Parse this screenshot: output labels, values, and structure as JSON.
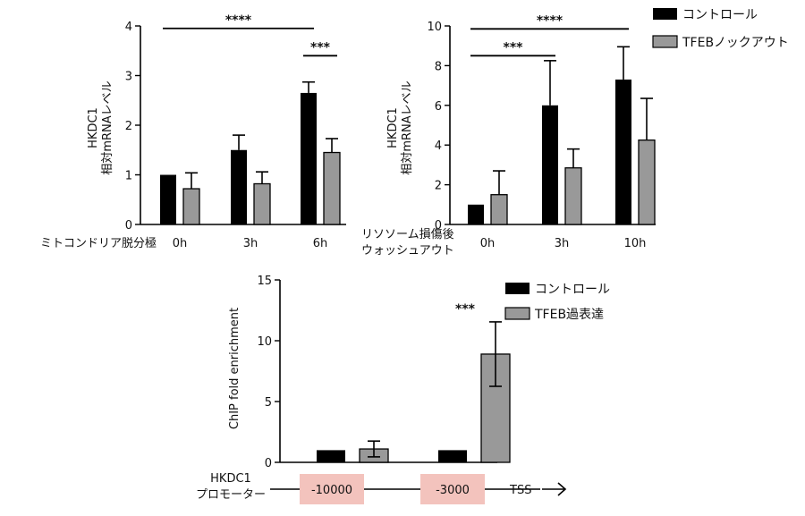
{
  "colors": {
    "control": "#000000",
    "treated": "#999999",
    "region_box": "#f3c3bd",
    "axis": "#000000"
  },
  "chart_data": [
    {
      "id": "chartA",
      "type": "bar",
      "ylabel_line1": "HKDC1",
      "ylabel_line2": "相対mRNAレベル",
      "xlabel": "ミトコンドリア脱分極",
      "categories": [
        "0h",
        "3h",
        "6h"
      ],
      "ylim": [
        0,
        4
      ],
      "yticks": [
        0,
        1,
        2,
        3,
        4
      ],
      "series": [
        {
          "name": "コントロール",
          "color": "#000000",
          "values": [
            1.0,
            1.5,
            2.65
          ],
          "errors": [
            0,
            0.3,
            0.22
          ]
        },
        {
          "name": "TFEBノックアウト",
          "color": "#999999",
          "values": [
            0.72,
            0.82,
            1.45
          ],
          "errors": [
            0.32,
            0.24,
            0.28
          ]
        }
      ],
      "significance": [
        {
          "label": "****",
          "from": [
            0,
            0
          ],
          "to": [
            2,
            0
          ],
          "y": 3.95
        },
        {
          "label": "***",
          "from": [
            2,
            0
          ],
          "to": [
            2,
            1
          ],
          "y": 3.4
        }
      ]
    },
    {
      "id": "chartB",
      "type": "bar",
      "ylabel_line1": "HKDC1",
      "ylabel_line2": "相対mRNAレベル",
      "xlabel_line1": "リソソーム損傷後",
      "xlabel_line2": "ウォッシュアウト",
      "categories": [
        "0h",
        "3h",
        "10h"
      ],
      "ylim": [
        0,
        10
      ],
      "yticks": [
        0,
        2,
        4,
        6,
        8,
        10
      ],
      "series": [
        {
          "name": "コントロール",
          "color": "#000000",
          "values": [
            1.0,
            6.0,
            7.3
          ],
          "errors": [
            0,
            2.25,
            1.65
          ]
        },
        {
          "name": "TFEBノックアウト",
          "color": "#999999",
          "values": [
            1.5,
            2.85,
            4.25
          ],
          "errors": [
            1.2,
            0.95,
            2.1
          ]
        }
      ],
      "significance": [
        {
          "label": "****",
          "from": [
            0,
            0
          ],
          "to": [
            2,
            0
          ],
          "y": 9.85
        },
        {
          "label": "***",
          "from": [
            0,
            0
          ],
          "to": [
            1,
            0
          ],
          "y": 8.5
        }
      ]
    },
    {
      "id": "chartC",
      "type": "bar",
      "ylabel": "ChIP fold enrichment",
      "categories": [
        "-10000",
        "-3000"
      ],
      "ylim": [
        0,
        15
      ],
      "yticks": [
        0,
        5,
        10,
        15
      ],
      "series": [
        {
          "name": "コントロール",
          "color": "#000000",
          "values": [
            1.0,
            1.0
          ],
          "errors": [
            0,
            0
          ]
        },
        {
          "name": "TFEB過表達",
          "color": "#999999",
          "values": [
            1.1,
            8.9
          ],
          "errors": [
            0.65,
            2.65
          ]
        }
      ],
      "significance": [
        {
          "label": "***",
          "category": 1
        }
      ],
      "promoter_label_line1": "HKDC1",
      "promoter_label_line2": "プロモーター",
      "tss_label": "TSS"
    }
  ],
  "legend_top": [
    {
      "label": "コントロール",
      "color": "#000000"
    },
    {
      "label": "TFEBノックアウト",
      "color": "#999999"
    }
  ],
  "legend_bottom": [
    {
      "label": "コントロール",
      "color": "#000000"
    },
    {
      "label": "TFEB過表達",
      "color": "#999999"
    }
  ]
}
